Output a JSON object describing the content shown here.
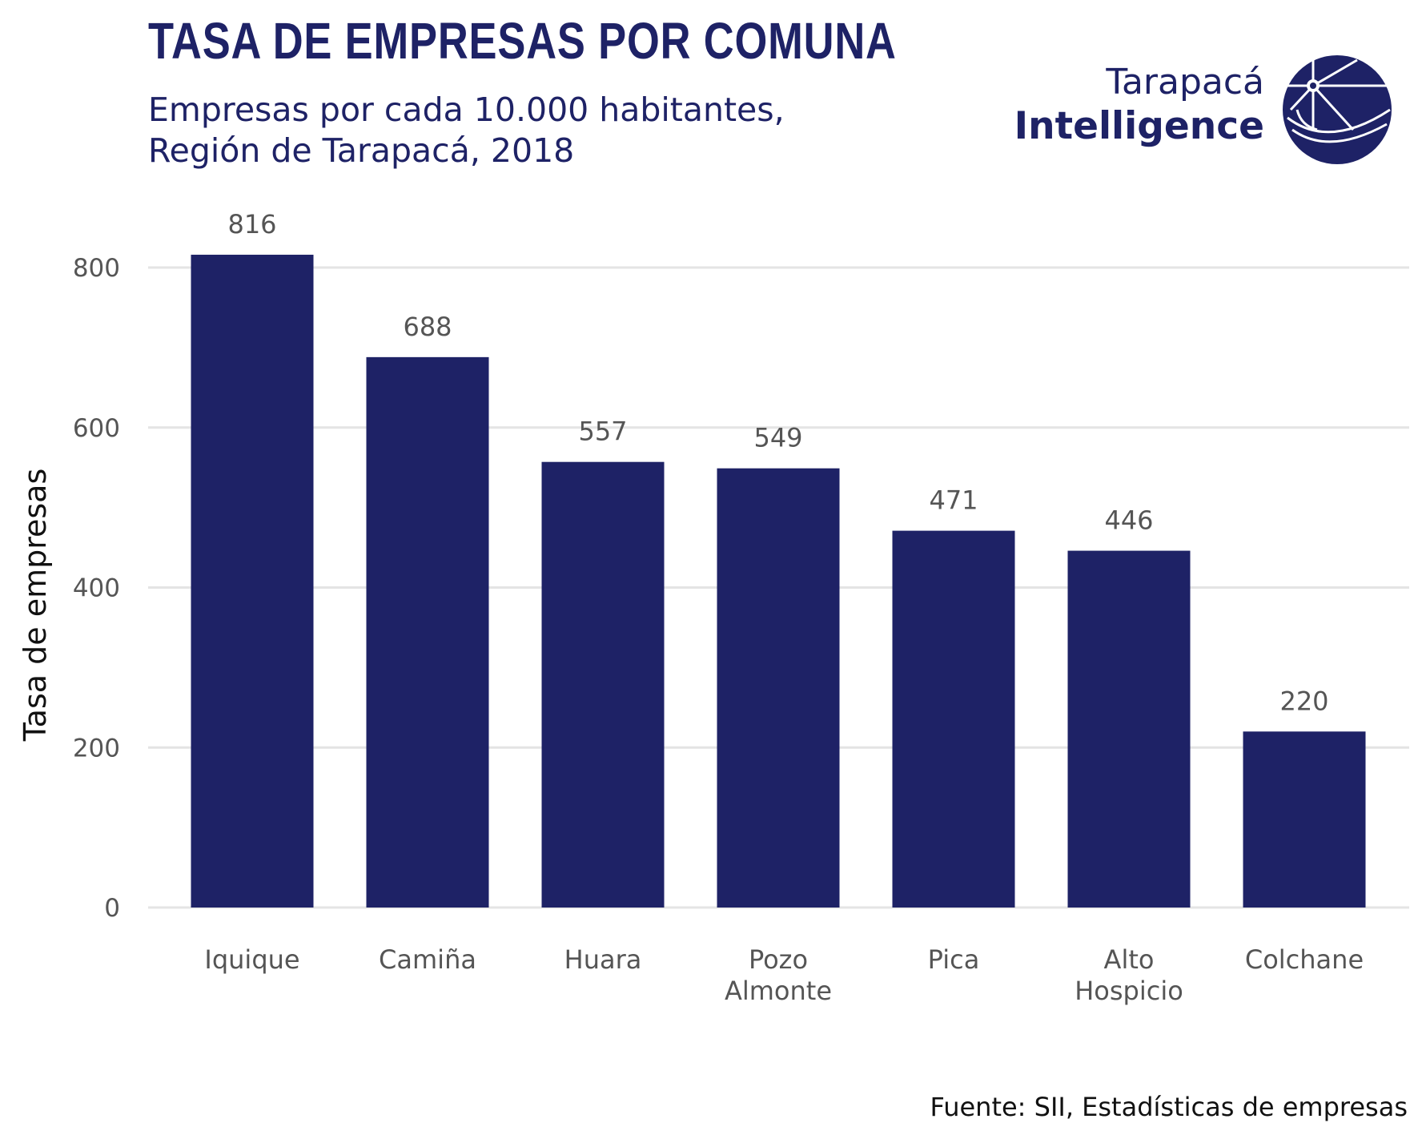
{
  "header": {
    "title": "TASA DE EMPRESAS POR COMUNA",
    "subtitle_line1": "Empresas por cada 10.000 habitantes,",
    "subtitle_line2": "Región de Tarapacá, 2018"
  },
  "logo": {
    "line1": "Tarapacá",
    "line2": "Intelligence",
    "icon": "globe-compass-icon"
  },
  "footer": {
    "source": "Fuente: SII, Estadísticas de empresas"
  },
  "colors": {
    "bar": "#1e2266",
    "text_dark": "#1e2266",
    "grid": "#e4e4e4"
  },
  "chart_data": {
    "type": "bar",
    "categories": [
      "Iquique",
      "Camiña",
      "Huara",
      "Pozo Almonte",
      "Pica",
      "Alto Hospicio",
      "Colchane"
    ],
    "category_lines": [
      [
        "Iquique"
      ],
      [
        "Camiña"
      ],
      [
        "Huara"
      ],
      [
        "Pozo",
        "Almonte"
      ],
      [
        "Pica"
      ],
      [
        "Alto",
        "Hospicio"
      ],
      [
        "Colchane"
      ]
    ],
    "values": [
      816,
      688,
      557,
      549,
      471,
      446,
      220
    ],
    "ylabel": "Tasa de empresas",
    "xlabel": "",
    "ylim": [
      0,
      850
    ],
    "yticks": [
      0,
      200,
      400,
      600,
      800
    ],
    "grid": true,
    "data_labels": true
  }
}
